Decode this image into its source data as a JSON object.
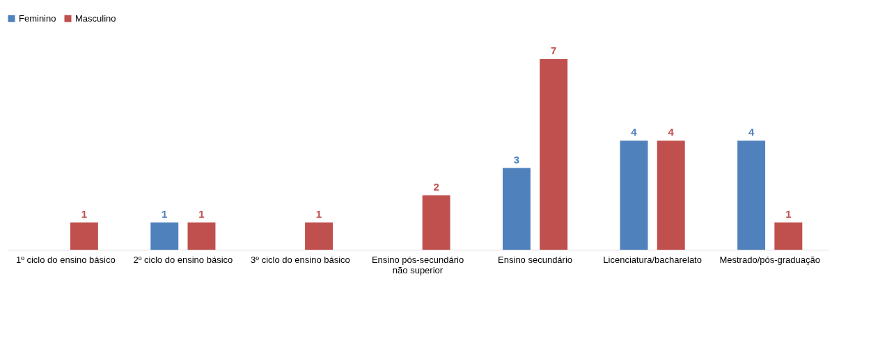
{
  "chart_data": {
    "type": "bar",
    "categories": [
      "1º ciclo do ensino básico",
      "2º ciclo do ensino básico",
      "3º ciclo do ensino básico",
      "Ensino pós-secundário não superior",
      "Ensino secundário",
      "Licenciatura/bacharelato",
      "Mestrado/pós-graduação"
    ],
    "series": [
      {
        "name": "Feminino",
        "color": "#4f81bd",
        "values": [
          null,
          1,
          null,
          null,
          3,
          4,
          4
        ]
      },
      {
        "name": "Masculino",
        "color": "#c0504d",
        "values": [
          1,
          1,
          1,
          2,
          7,
          4,
          1
        ]
      }
    ],
    "data_labels": true,
    "legend": "top",
    "grid": false
  }
}
